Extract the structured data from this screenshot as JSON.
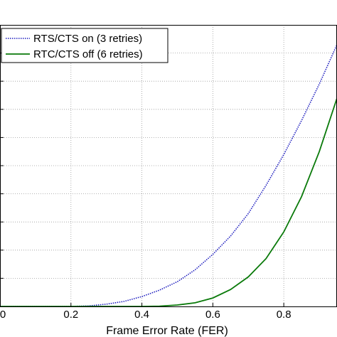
{
  "chart_data": {
    "type": "line",
    "title": "",
    "xlabel": "Frame Error Rate (FER)",
    "ylabel": "",
    "xlim": [
      0,
      0.95
    ],
    "ylim": [
      0,
      10
    ],
    "x_ticks": [
      0,
      0.2,
      0.4,
      0.6,
      0.8
    ],
    "x_tick_labels": [
      "0",
      "0.2",
      "0.4",
      "0.6",
      "0.8"
    ],
    "grid": true,
    "legend_position": "top-left",
    "series": [
      {
        "name": "RTS/CTS on (3 retries)",
        "color": "#1f1fbf",
        "style": "dotted",
        "x": [
          0,
          0.2,
          0.25,
          0.3,
          0.35,
          0.4,
          0.45,
          0.5,
          0.55,
          0.6,
          0.65,
          0.7,
          0.75,
          0.8,
          0.85,
          0.9,
          0.95
        ],
        "y": [
          0,
          0,
          0.02,
          0.08,
          0.18,
          0.35,
          0.58,
          0.88,
          1.3,
          1.85,
          2.5,
          3.3,
          4.3,
          5.4,
          6.6,
          7.9,
          9.3
        ]
      },
      {
        "name": "RTC/CTS off (6 retries)",
        "color": "#0a7a0a",
        "style": "solid",
        "x": [
          0,
          0.4,
          0.45,
          0.5,
          0.55,
          0.6,
          0.65,
          0.7,
          0.75,
          0.8,
          0.85,
          0.9,
          0.95
        ],
        "y": [
          0,
          0,
          0.01,
          0.05,
          0.13,
          0.3,
          0.6,
          1.05,
          1.7,
          2.65,
          3.9,
          5.5,
          7.4
        ]
      }
    ]
  }
}
